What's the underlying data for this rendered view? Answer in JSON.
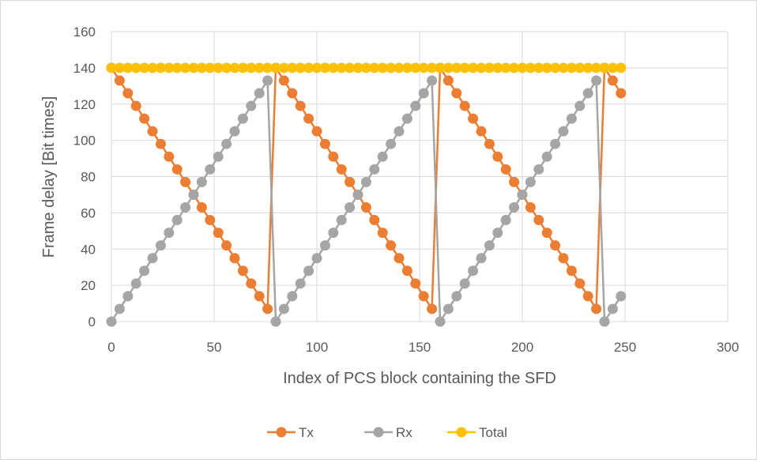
{
  "chart_data": {
    "type": "line",
    "xlabel": "Index of PCS block containing the SFD",
    "ylabel": "Frame delay [Bit times]",
    "xlim": [
      0,
      300
    ],
    "ylim": [
      0,
      160
    ],
    "xticks": [
      0,
      50,
      100,
      150,
      200,
      250,
      300
    ],
    "yticks": [
      0,
      20,
      40,
      60,
      80,
      100,
      120,
      140,
      160
    ],
    "grid": true,
    "legend_position": "bottom",
    "series": [
      {
        "name": "Tx",
        "color": "#ED7D31",
        "x": [
          0,
          4,
          8,
          12,
          16,
          20,
          24,
          28,
          32,
          36,
          40,
          44,
          48,
          52,
          56,
          60,
          64,
          68,
          72,
          76,
          80,
          84,
          88,
          92,
          96,
          100,
          104,
          108,
          112,
          116,
          120,
          124,
          128,
          132,
          136,
          140,
          144,
          148,
          152,
          156,
          160,
          164,
          168,
          172,
          176,
          180,
          184,
          188,
          192,
          196,
          200,
          204,
          208,
          212,
          216,
          220,
          224,
          228,
          232,
          236,
          240,
          244,
          248
        ],
        "y": [
          140,
          133,
          126,
          119,
          112,
          105,
          98,
          91,
          84,
          77,
          70,
          63,
          56,
          49,
          42,
          35,
          28,
          21,
          14,
          7,
          140,
          133,
          126,
          119,
          112,
          105,
          98,
          91,
          84,
          77,
          70,
          63,
          56,
          49,
          42,
          35,
          28,
          21,
          14,
          7,
          140,
          133,
          126,
          119,
          112,
          105,
          98,
          91,
          84,
          77,
          70,
          63,
          56,
          49,
          42,
          35,
          28,
          21,
          14,
          7,
          140,
          133,
          126
        ]
      },
      {
        "name": "Rx",
        "color": "#A5A5A5",
        "x": [
          0,
          4,
          8,
          12,
          16,
          20,
          24,
          28,
          32,
          36,
          40,
          44,
          48,
          52,
          56,
          60,
          64,
          68,
          72,
          76,
          80,
          84,
          88,
          92,
          96,
          100,
          104,
          108,
          112,
          116,
          120,
          124,
          128,
          132,
          136,
          140,
          144,
          148,
          152,
          156,
          160,
          164,
          168,
          172,
          176,
          180,
          184,
          188,
          192,
          196,
          200,
          204,
          208,
          212,
          216,
          220,
          224,
          228,
          232,
          236,
          240,
          244,
          248
        ],
        "y": [
          0,
          7,
          14,
          21,
          28,
          35,
          42,
          49,
          56,
          63,
          70,
          77,
          84,
          91,
          98,
          105,
          112,
          119,
          126,
          133,
          0,
          7,
          14,
          21,
          28,
          35,
          42,
          49,
          56,
          63,
          70,
          77,
          84,
          91,
          98,
          105,
          112,
          119,
          126,
          133,
          0,
          7,
          14,
          21,
          28,
          35,
          42,
          49,
          56,
          63,
          70,
          77,
          84,
          91,
          98,
          105,
          112,
          119,
          126,
          133,
          0,
          7,
          14
        ]
      },
      {
        "name": "Total",
        "color": "#FFC000",
        "x": [
          0,
          4,
          8,
          12,
          16,
          20,
          24,
          28,
          32,
          36,
          40,
          44,
          48,
          52,
          56,
          60,
          64,
          68,
          72,
          76,
          80,
          84,
          88,
          92,
          96,
          100,
          104,
          108,
          112,
          116,
          120,
          124,
          128,
          132,
          136,
          140,
          144,
          148,
          152,
          156,
          160,
          164,
          168,
          172,
          176,
          180,
          184,
          188,
          192,
          196,
          200,
          204,
          208,
          212,
          216,
          220,
          224,
          228,
          232,
          236,
          240,
          244,
          248
        ],
        "y": [
          140,
          140,
          140,
          140,
          140,
          140,
          140,
          140,
          140,
          140,
          140,
          140,
          140,
          140,
          140,
          140,
          140,
          140,
          140,
          140,
          140,
          140,
          140,
          140,
          140,
          140,
          140,
          140,
          140,
          140,
          140,
          140,
          140,
          140,
          140,
          140,
          140,
          140,
          140,
          140,
          140,
          140,
          140,
          140,
          140,
          140,
          140,
          140,
          140,
          140,
          140,
          140,
          140,
          140,
          140,
          140,
          140,
          140,
          140,
          140,
          140,
          140,
          140
        ]
      }
    ]
  }
}
